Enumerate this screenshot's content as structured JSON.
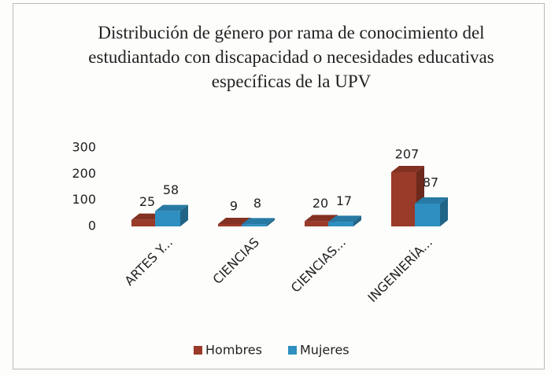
{
  "chart_data": {
    "type": "bar3d",
    "title": "Distribución de género por rama de conocimiento del estudiantado con discapacidad o necesidades educativas específicas de la UPV",
    "categories": [
      "ARTES Y...",
      "CIENCIAS",
      "CIENCIAS...",
      "INGENIERÍA..."
    ],
    "series": [
      {
        "name": "Hombres",
        "color": "#9a3a28",
        "values": [
          25,
          9,
          20,
          207
        ]
      },
      {
        "name": "Mujeres",
        "color": "#2e8fc0",
        "values": [
          58,
          8,
          17,
          87
        ]
      }
    ],
    "ylim": [
      0,
      300
    ],
    "yticks": [
      0,
      100,
      200,
      300
    ],
    "legend": "bottom"
  }
}
